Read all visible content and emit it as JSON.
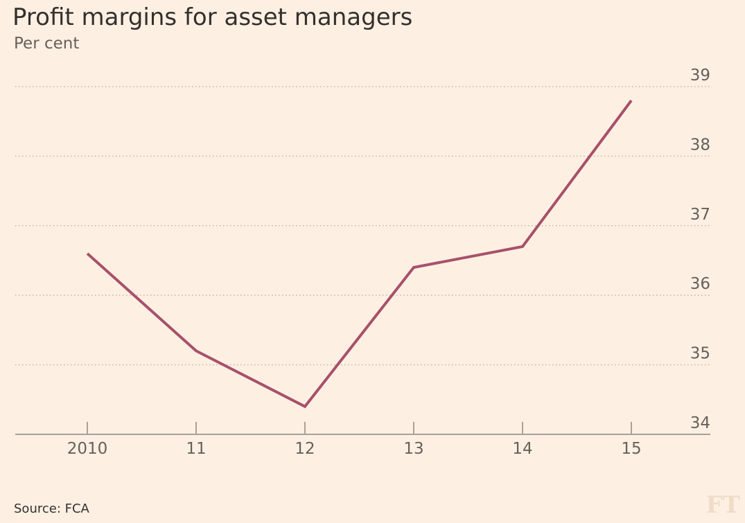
{
  "chart_data": {
    "type": "line",
    "title": "Profit margins for asset managers",
    "subtitle": "Per cent",
    "x": [
      "2010",
      "11",
      "12",
      "13",
      "14",
      "15"
    ],
    "series": [
      {
        "values": [
          36.6,
          35.2,
          34.4,
          36.4,
          36.7,
          38.8
        ],
        "color": "#a8506b"
      }
    ],
    "ylim": [
      34,
      39
    ],
    "yticks": [
      "34",
      "35",
      "36",
      "37",
      "38",
      "39"
    ],
    "y_axis_position": "right",
    "grid": true,
    "source": "Source: FCA",
    "logo": "FT"
  }
}
